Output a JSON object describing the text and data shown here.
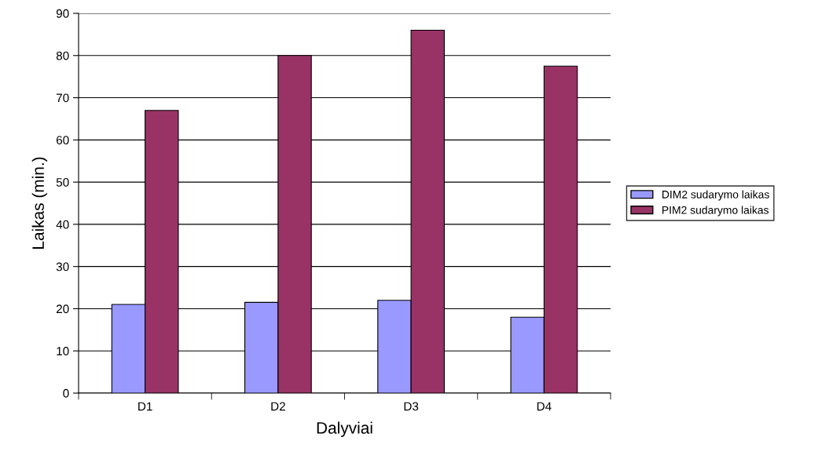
{
  "chart_data": {
    "type": "bar",
    "xlabel": "Dalyviai",
    "ylabel": "Laikas (min.)",
    "categories": [
      "D1",
      "D2",
      "D3",
      "D4"
    ],
    "series": [
      {
        "name": "DIM2 sudarymo laikas",
        "color": "#9999ff",
        "values": [
          21,
          21.5,
          22,
          18
        ]
      },
      {
        "name": "PIM2 sudarymo laikas",
        "color": "#993366",
        "values": [
          67,
          80,
          86,
          77.5
        ]
      }
    ],
    "ylim": [
      0,
      90
    ],
    "yticks": [
      0,
      10,
      20,
      30,
      40,
      50,
      60,
      70,
      80,
      90
    ],
    "grid": "y",
    "legend": "right"
  }
}
